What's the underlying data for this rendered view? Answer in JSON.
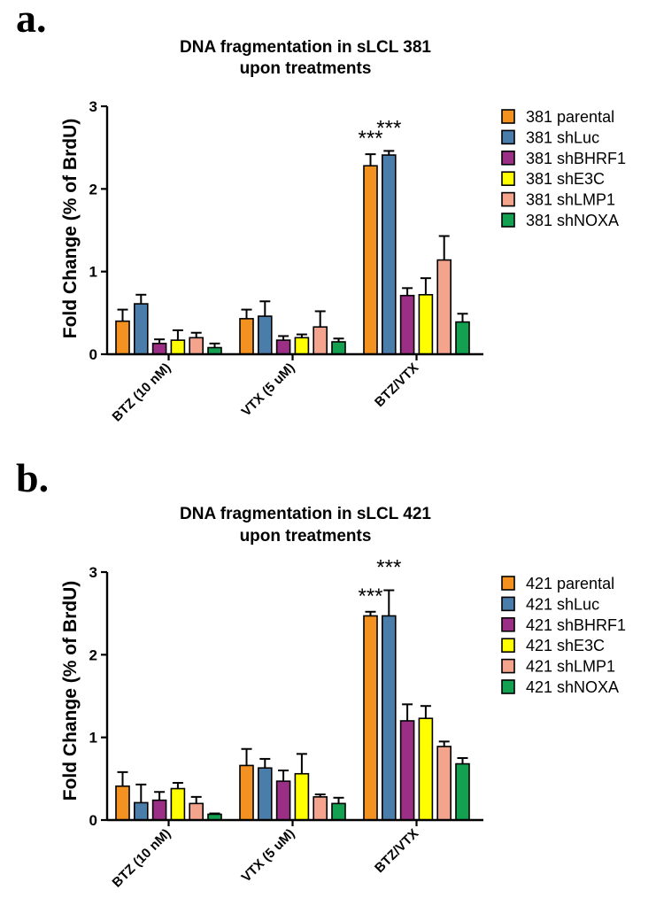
{
  "chart_data": [
    {
      "panel_label": "a.",
      "type": "bar",
      "title": [
        "DNA fragmentation in sLCL 381",
        "upon treatments"
      ],
      "ylabel": "Fold Change (% of BrdU)",
      "ylim": [
        0,
        3
      ],
      "yticks": [
        0,
        1,
        2,
        3
      ],
      "categories": [
        "BTZ (10 nM)",
        "VTX (5 uM)",
        "BTZ/VTX"
      ],
      "series": [
        {
          "name": "381 parental",
          "color": "#F39220",
          "values": [
            0.4,
            0.43,
            2.28
          ],
          "errors": [
            0.14,
            0.11,
            0.14
          ]
        },
        {
          "name": "381 shLuc",
          "color": "#4A7DAA",
          "values": [
            0.61,
            0.46,
            2.41
          ],
          "errors": [
            0.11,
            0.18,
            0.05
          ]
        },
        {
          "name": "381 shBHRF1",
          "color": "#9B2F86",
          "values": [
            0.13,
            0.17,
            0.71
          ],
          "errors": [
            0.05,
            0.05,
            0.09
          ]
        },
        {
          "name": "381 shE3C",
          "color": "#FFFF00",
          "values": [
            0.17,
            0.2,
            0.72
          ],
          "errors": [
            0.12,
            0.04,
            0.2
          ]
        },
        {
          "name": "381 shLMP1",
          "color": "#F4A48C",
          "values": [
            0.2,
            0.33,
            1.14
          ],
          "errors": [
            0.06,
            0.19,
            0.29
          ]
        },
        {
          "name": "381 shNOXA",
          "color": "#13A050",
          "values": [
            0.08,
            0.15,
            0.39
          ],
          "errors": [
            0.05,
            0.04,
            0.1
          ]
        }
      ],
      "annotations": [
        {
          "category": "BTZ/VTX",
          "series": "381 parental",
          "text": "***"
        },
        {
          "category": "BTZ/VTX",
          "series": "381 shLuc",
          "text": "***"
        }
      ]
    },
    {
      "panel_label": "b.",
      "type": "bar",
      "title": [
        "DNA fragmentation in sLCL 421",
        "upon treatments"
      ],
      "ylabel": "Fold Change (% of BrdU)",
      "ylim": [
        0,
        3
      ],
      "yticks": [
        0,
        1,
        2,
        3
      ],
      "categories": [
        "BTZ (10 nM)",
        "VTX (5 uM)",
        "BTZ/VTX"
      ],
      "series": [
        {
          "name": "421 parental",
          "color": "#F39220",
          "values": [
            0.41,
            0.66,
            2.47
          ],
          "errors": [
            0.17,
            0.2,
            0.05
          ]
        },
        {
          "name": "421 shLuc",
          "color": "#4A7DAA",
          "values": [
            0.21,
            0.63,
            2.47
          ],
          "errors": [
            0.22,
            0.11,
            0.31
          ]
        },
        {
          "name": "421 shBHRF1",
          "color": "#9B2F86",
          "values": [
            0.24,
            0.47,
            1.2
          ],
          "errors": [
            0.1,
            0.13,
            0.2
          ]
        },
        {
          "name": "421 shE3C",
          "color": "#FFFF00",
          "values": [
            0.38,
            0.56,
            1.23
          ],
          "errors": [
            0.07,
            0.24,
            0.15
          ]
        },
        {
          "name": "421 shLMP1",
          "color": "#F4A48C",
          "values": [
            0.2,
            0.28,
            0.89
          ],
          "errors": [
            0.08,
            0.03,
            0.06
          ]
        },
        {
          "name": "421 shNOXA",
          "color": "#13A050",
          "values": [
            0.07,
            0.2,
            0.68
          ],
          "errors": [
            0.01,
            0.07,
            0.07
          ]
        }
      ],
      "annotations": [
        {
          "category": "BTZ/VTX",
          "series": "421 parental",
          "text": "***"
        },
        {
          "category": "BTZ/VTX",
          "series": "421 shLuc",
          "text": "***"
        }
      ]
    }
  ]
}
